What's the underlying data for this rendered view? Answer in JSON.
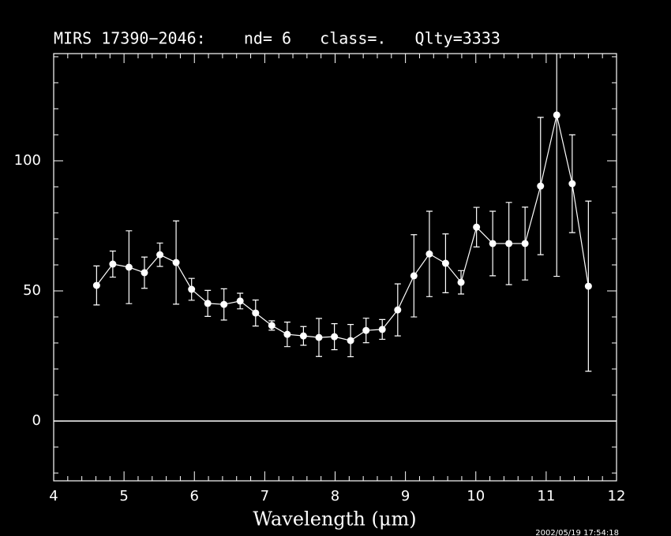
{
  "chart_data": {
    "type": "errorbar-line",
    "title": "MIRS 17390−2046:    nd= 6   class=.   Qlty=3333",
    "x_label": "Wavelength (μm)",
    "timestamp": "2002/05/19 17:54:18",
    "color": "#ffffff",
    "x": [
      4.61,
      4.84,
      5.07,
      5.29,
      5.51,
      5.74,
      5.96,
      6.19,
      6.42,
      6.65,
      6.87,
      7.1,
      7.32,
      7.55,
      7.77,
      7.99,
      8.22,
      8.44,
      8.67,
      8.89,
      9.12,
      9.34,
      9.57,
      9.79,
      10.01,
      10.24,
      10.47,
      10.7,
      10.92,
      11.15,
      11.37,
      11.6
    ],
    "values": [
      52.1,
      60.3,
      59.1,
      57.0,
      63.9,
      60.9,
      50.6,
      45.2,
      44.8,
      46.1,
      41.5,
      36.7,
      33.3,
      32.7,
      32.1,
      32.4,
      30.9,
      34.8,
      35.2,
      42.7,
      55.8,
      64.2,
      60.6,
      53.3,
      74.5,
      68.2,
      68.2,
      68.2,
      90.3,
      117.6,
      91.2,
      51.8
    ],
    "errors": [
      7.5,
      5,
      14,
      6,
      4.5,
      16,
      4.2,
      5,
      6,
      3,
      5,
      1.8,
      4.7,
      3.6,
      7.3,
      5,
      6.2,
      4.7,
      3.8,
      10,
      15.8,
      16.4,
      11.3,
      4.5,
      7.6,
      12.4,
      15.8,
      14,
      26.4,
      62,
      18.8,
      32.7
    ],
    "xlim": [
      4,
      12
    ],
    "ylim": [
      -23,
      141.2
    ],
    "xticks": [
      4,
      5,
      6,
      7,
      8,
      9,
      10,
      11,
      12
    ],
    "yticks": [
      0,
      50,
      100
    ],
    "xticks_minor": [
      4.2,
      4.4,
      4.6,
      4.8,
      5.2,
      5.4,
      5.6,
      5.8,
      6.2,
      6.4,
      6.6,
      6.8,
      7.2,
      7.4,
      7.6,
      7.8,
      8.2,
      8.4,
      8.6,
      8.8,
      9.2,
      9.4,
      9.6,
      9.8,
      10.2,
      10.4,
      10.6,
      10.8,
      11.2,
      11.4,
      11.6,
      11.8
    ],
    "yticks_minor": [
      -20,
      -10,
      10,
      20,
      30,
      40,
      60,
      70,
      80,
      90,
      110,
      120,
      130,
      140
    ],
    "hline": 0
  }
}
